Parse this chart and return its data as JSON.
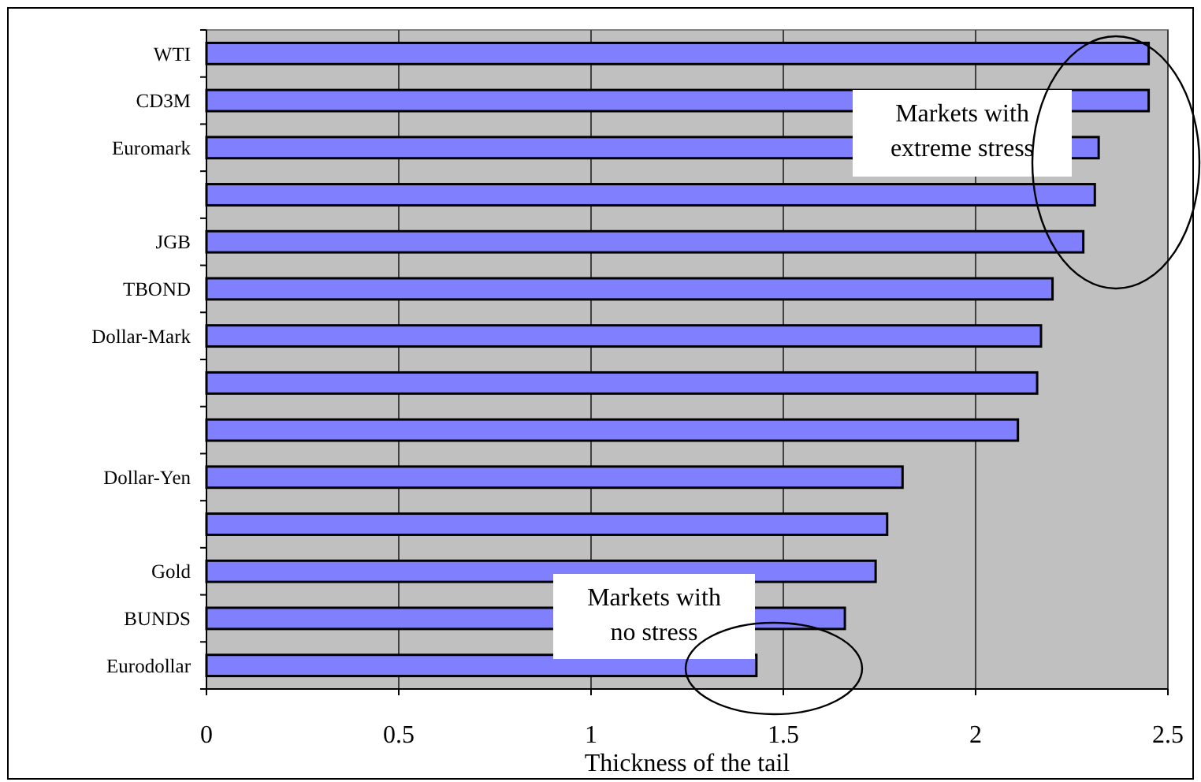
{
  "chart_data": {
    "type": "bar",
    "orientation": "horizontal",
    "xlabel": "Thickness of the tail",
    "categories": [
      "WTI",
      "CD3M",
      "Euromark",
      null,
      "JGB",
      "TBOND",
      "Dollar-Mark",
      null,
      null,
      "Dollar-Yen",
      null,
      "Gold",
      "BUNDS",
      "Eurodollar"
    ],
    "values": [
      2.45,
      2.45,
      2.32,
      2.31,
      2.28,
      2.2,
      2.17,
      2.16,
      2.11,
      1.81,
      1.77,
      1.74,
      1.66,
      1.43
    ],
    "color": "#8080ff",
    "xlim": [
      0,
      2.5
    ],
    "xticks": [
      0,
      0.5,
      1,
      1.5,
      2,
      2.5
    ],
    "grid": "x",
    "annotations": [
      "Markets with\nextreme stress",
      "Markets with\nno stress"
    ]
  }
}
